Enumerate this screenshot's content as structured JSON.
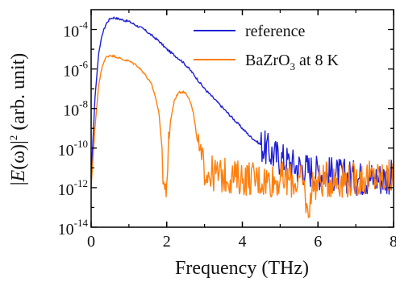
{
  "chart_data": {
    "type": "line",
    "title": "",
    "xlabel": "Frequency (THz)",
    "ylabel": "|E(ω)|² (arb. unit)",
    "ylabel_parts": {
      "e": "E",
      "omega": "(ω)",
      "sq": "2",
      "unit": " (arb. unit)"
    },
    "xlim": [
      0,
      8
    ],
    "ylim_log10": [
      -14,
      -3
    ],
    "y_scale": "log",
    "x_ticks": [
      "0",
      "2",
      "4",
      "6",
      "8"
    ],
    "x_tick_values": [
      0,
      2,
      4,
      6,
      8
    ],
    "y_ticks": [
      {
        "base": "10",
        "exp": "-4"
      },
      {
        "base": "10",
        "exp": "-6"
      },
      {
        "base": "10",
        "exp": "-8"
      },
      {
        "base": "10",
        "exp": "-10"
      },
      {
        "base": "10",
        "exp": "-12"
      },
      {
        "base": "10",
        "exp": "-14"
      }
    ],
    "y_tick_log_values": [
      -4,
      -6,
      -8,
      -10,
      -12,
      -14
    ],
    "grid": false,
    "legend_position": "top-right",
    "series": [
      {
        "name": "reference",
        "legend_parts": {
          "text": "reference"
        },
        "color": "#1f1fd6",
        "x": [
          0.0,
          0.1,
          0.2,
          0.3,
          0.4,
          0.5,
          0.6,
          0.7,
          0.8,
          1.0,
          1.2,
          1.4,
          1.6,
          1.8,
          2.0,
          2.2,
          2.4,
          2.6,
          2.8,
          3.0,
          3.2,
          3.4,
          3.6,
          3.8,
          4.0,
          4.2,
          4.4,
          4.6,
          4.8,
          5.0,
          5.2,
          5.4,
          5.6,
          5.8,
          6.0,
          6.2,
          6.4,
          6.6,
          6.8,
          7.0,
          7.2,
          7.4,
          7.6,
          7.8,
          8.0
        ],
        "log10_y": [
          -11.5,
          -7.5,
          -5.2,
          -4.2,
          -3.7,
          -3.45,
          -3.4,
          -3.45,
          -3.5,
          -3.6,
          -3.8,
          -4.0,
          -4.3,
          -4.6,
          -5.0,
          -5.3,
          -5.6,
          -6.0,
          -6.5,
          -7.0,
          -7.4,
          -7.8,
          -8.2,
          -8.6,
          -9.0,
          -9.4,
          -9.7,
          -10.0,
          -10.3,
          -10.5,
          -10.7,
          -10.9,
          -11.0,
          -11.1,
          -11.2,
          -11.3,
          -11.3,
          -11.4,
          -11.4,
          -11.5,
          -11.5,
          -11.5,
          -11.5,
          -11.5,
          -11.4
        ]
      },
      {
        "name": "BaZrO3 at 8 K",
        "legend_parts": {
          "pre": "BaZrO",
          "sub": "3",
          "post": " at 8 K"
        },
        "color": "#ff7f0e",
        "x": [
          0.0,
          0.1,
          0.2,
          0.3,
          0.4,
          0.5,
          0.6,
          0.7,
          0.8,
          1.0,
          1.2,
          1.4,
          1.6,
          1.7,
          1.8,
          1.85,
          1.9,
          1.95,
          2.0,
          2.05,
          2.1,
          2.2,
          2.3,
          2.4,
          2.5,
          2.6,
          2.7,
          2.8,
          2.9,
          3.0,
          3.1,
          3.2,
          3.4,
          3.6,
          3.8,
          4.0,
          4.2,
          4.4,
          4.6,
          4.8,
          5.0,
          5.2,
          5.4,
          5.6,
          5.7,
          5.75,
          5.8,
          6.0,
          6.2,
          6.4,
          6.6,
          6.8,
          7.0,
          7.2,
          7.4,
          7.6,
          7.8,
          8.0
        ],
        "log10_y": [
          -12.0,
          -9.0,
          -6.8,
          -5.8,
          -5.4,
          -5.3,
          -5.35,
          -5.4,
          -5.5,
          -5.6,
          -5.8,
          -6.2,
          -6.8,
          -7.4,
          -8.3,
          -9.5,
          -11.0,
          -12.3,
          -11.6,
          -10.0,
          -8.6,
          -7.6,
          -7.2,
          -7.15,
          -7.2,
          -7.5,
          -8.2,
          -9.5,
          -10.6,
          -11.0,
          -11.2,
          -11.3,
          -11.4,
          -11.4,
          -11.5,
          -11.5,
          -11.5,
          -11.6,
          -11.6,
          -11.6,
          -11.6,
          -11.6,
          -11.7,
          -11.7,
          -12.8,
          -14.0,
          -12.0,
          -11.7,
          -11.6,
          -11.6,
          -11.6,
          -11.6,
          -11.6,
          -11.5,
          -11.5,
          -11.5,
          -11.5,
          -11.5
        ]
      }
    ]
  }
}
